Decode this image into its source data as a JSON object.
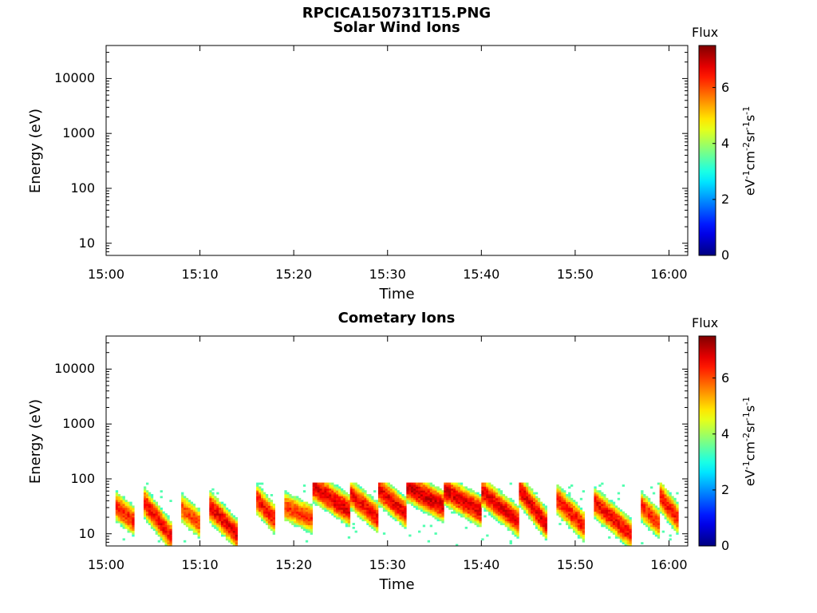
{
  "figure_title": "RPCICA150731T15.PNG",
  "chart_data": [
    {
      "type": "heatmap",
      "title": "Solar Wind Ions",
      "xlabel": "Time",
      "ylabel": "Energy (eV)",
      "yscale": "log",
      "ylim": [
        6,
        40000
      ],
      "yticks": [
        {
          "v": 10,
          "label": "10"
        },
        {
          "v": 100,
          "label": "100"
        },
        {
          "v": 1000,
          "label": "1000"
        },
        {
          "v": 10000,
          "label": "10000"
        }
      ],
      "xlim": [
        "15:00",
        "16:02"
      ],
      "xticks": [
        "15:00",
        "15:10",
        "15:20",
        "15:30",
        "15:40",
        "15:50",
        "16:00"
      ],
      "colorbar": {
        "title": "Flux",
        "unit": "eV-1cm-2sr-1s-1",
        "min": 0,
        "max": 7.5,
        "ticks": [
          0,
          2,
          4,
          6
        ],
        "colormap": "jet"
      },
      "grid": false,
      "data": []
    },
    {
      "type": "heatmap",
      "title": "Cometary Ions",
      "xlabel": "Time",
      "ylabel": "Energy (eV)",
      "yscale": "log",
      "ylim": [
        6,
        40000
      ],
      "yticks": [
        {
          "v": 10,
          "label": "10"
        },
        {
          "v": 100,
          "label": "100"
        },
        {
          "v": 1000,
          "label": "1000"
        },
        {
          "v": 10000,
          "label": "10000"
        }
      ],
      "xlim": [
        "15:00",
        "16:02"
      ],
      "xticks": [
        "15:00",
        "15:10",
        "15:20",
        "15:30",
        "15:40",
        "15:50",
        "16:00"
      ],
      "colorbar": {
        "title": "Flux",
        "unit": "eV-1cm-2sr-1s-1",
        "min": 0,
        "max": 7.5,
        "ticks": [
          0,
          2,
          4,
          6
        ],
        "colormap": "jet"
      },
      "grid": false,
      "data_extent": {
        "t_start": "15:01",
        "t_end": "16:01",
        "energy_min": 6,
        "energy_max": 80
      },
      "bursts": [
        {
          "t_start": "15:01",
          "t_end": "15:03",
          "e_high": 30,
          "e_low": 14,
          "peak": 6.8
        },
        {
          "t_start": "15:04",
          "t_end": "15:07",
          "e_high": 35,
          "e_low": 6,
          "peak": 7.0
        },
        {
          "t_start": "15:08",
          "t_end": "15:10",
          "e_high": 28,
          "e_low": 12,
          "peak": 6.5
        },
        {
          "t_start": "15:11",
          "t_end": "15:14",
          "e_high": 30,
          "e_low": 7,
          "peak": 7.1
        },
        {
          "t_start": "15:16",
          "t_end": "15:18",
          "e_high": 40,
          "e_low": 14,
          "peak": 6.9
        },
        {
          "t_start": "15:19",
          "t_end": "15:22",
          "e_high": 30,
          "e_low": 16,
          "peak": 6.6
        },
        {
          "t_start": "15:22",
          "t_end": "15:26",
          "e_high": 70,
          "e_low": 20,
          "peak": 7.2
        },
        {
          "t_start": "15:26",
          "t_end": "15:29",
          "e_high": 50,
          "e_low": 15,
          "peak": 7.0
        },
        {
          "t_start": "15:29",
          "t_end": "15:32",
          "e_high": 60,
          "e_low": 18,
          "peak": 7.1
        },
        {
          "t_start": "15:32",
          "t_end": "15:36",
          "e_high": 70,
          "e_low": 25,
          "peak": 7.3
        },
        {
          "t_start": "15:36",
          "t_end": "15:40",
          "e_high": 60,
          "e_low": 20,
          "peak": 7.2
        },
        {
          "t_start": "15:40",
          "t_end": "15:44",
          "e_high": 55,
          "e_low": 12,
          "peak": 7.1
        },
        {
          "t_start": "15:44",
          "t_end": "15:47",
          "e_high": 60,
          "e_low": 10,
          "peak": 7.2
        },
        {
          "t_start": "15:48",
          "t_end": "15:51",
          "e_high": 40,
          "e_low": 10,
          "peak": 6.9
        },
        {
          "t_start": "15:52",
          "t_end": "15:56",
          "e_high": 35,
          "e_low": 7,
          "peak": 7.0
        },
        {
          "t_start": "15:57",
          "t_end": "15:59",
          "e_high": 30,
          "e_low": 12,
          "peak": 6.7
        },
        {
          "t_start": "15:59",
          "t_end": "16:01",
          "e_high": 45,
          "e_low": 14,
          "peak": 6.9
        }
      ]
    }
  ]
}
